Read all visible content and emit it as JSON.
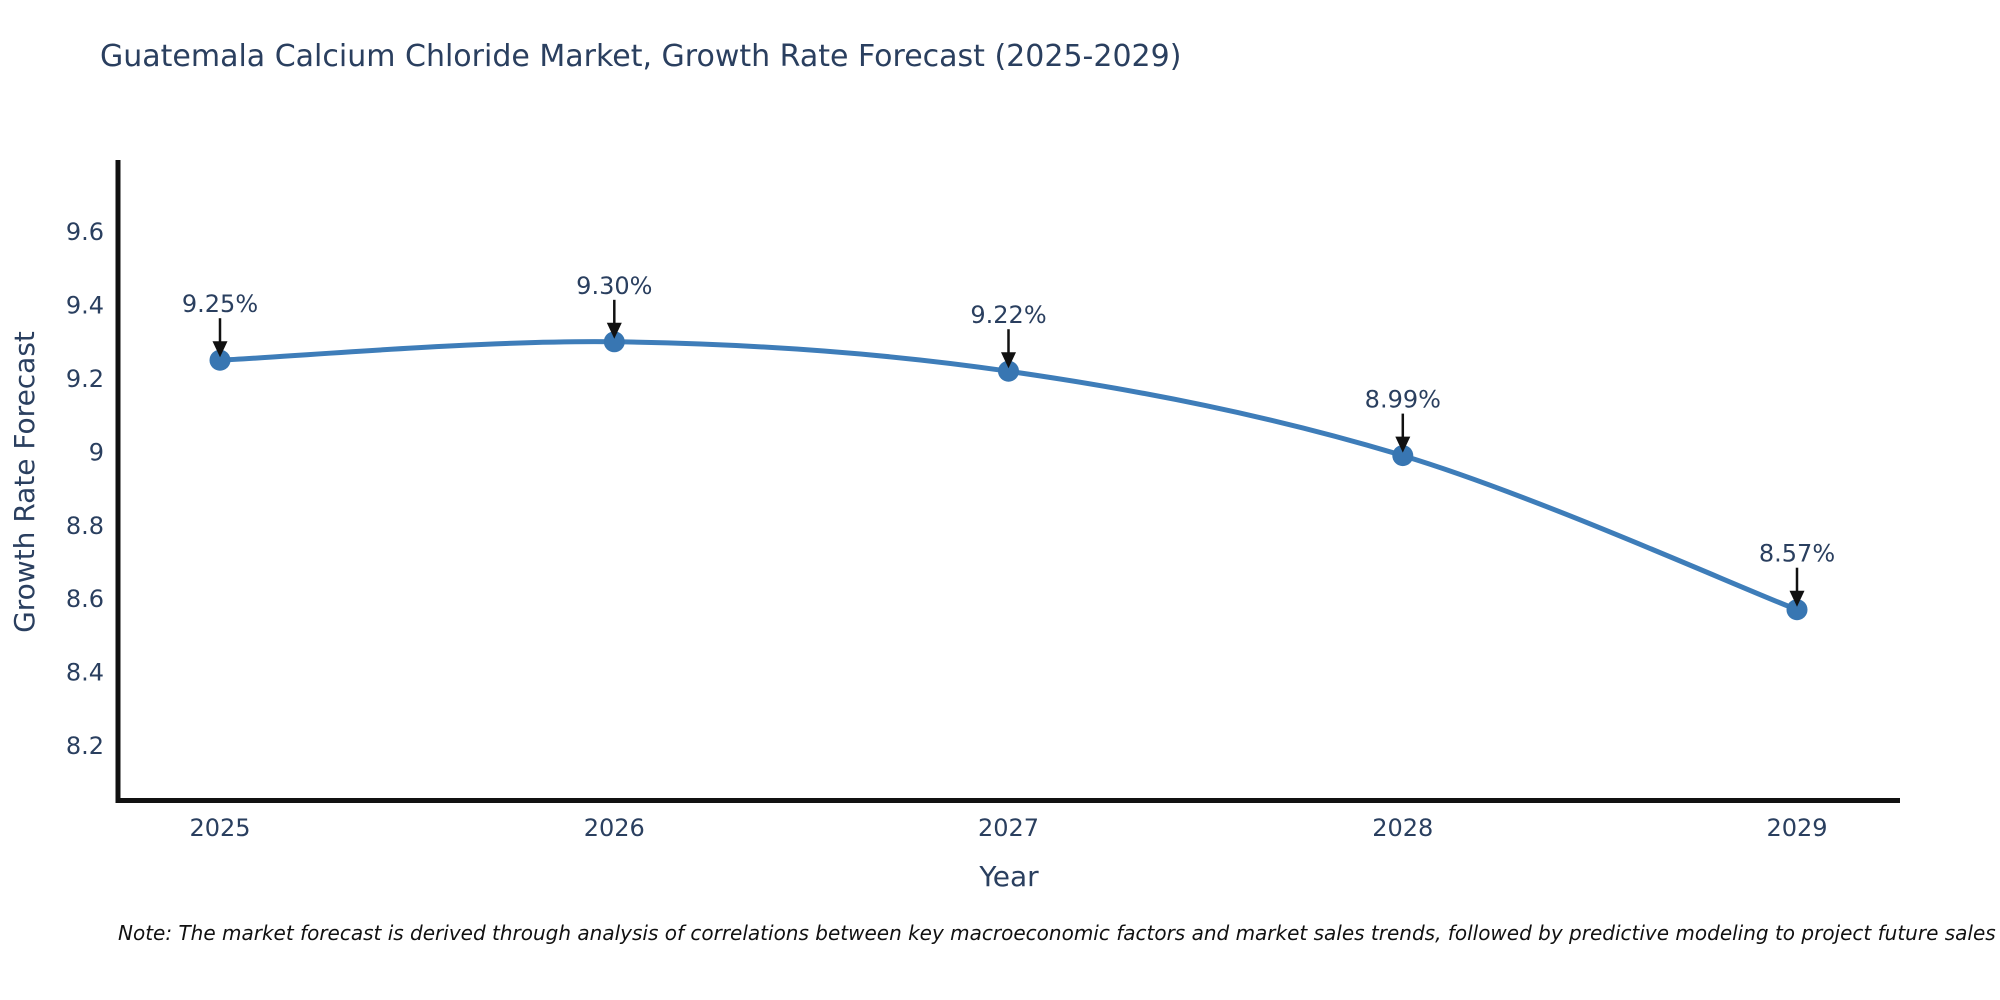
{
  "page": {
    "background": "#ffffff"
  },
  "chart_data": {
    "type": "line",
    "title": "Guatemala Calcium Chloride Market, Growth Rate Forecast (2025-2029)",
    "xlabel": "Year",
    "ylabel": "Growth Rate Forecast",
    "categories": [
      "2025",
      "2026",
      "2027",
      "2028",
      "2029"
    ],
    "series": [
      {
        "name": "Growth Rate Forecast",
        "values": [
          9.25,
          9.3,
          9.22,
          8.99,
          8.57
        ]
      }
    ],
    "point_labels": [
      "9.25%",
      "9.30%",
      "9.22%",
      "8.99%",
      "8.57%"
    ],
    "ytick_values": [
      9.6,
      9.4,
      9.2,
      9.0,
      8.8,
      8.6,
      8.4,
      8.2
    ],
    "ytick_labels": [
      "9.6",
      "9.4",
      "9.2",
      "9",
      "8.8",
      "8.6",
      "8.4",
      "8.2"
    ],
    "ylim": [
      8.05,
      9.79
    ],
    "grid": false,
    "legend": "none",
    "line_shape": "spline",
    "annotation_arrows": "black, pointing down at each data point",
    "colors": {
      "line": "#3e7db9",
      "marker": "#3876b2",
      "axis": "#111111",
      "text": "#2a3f5f",
      "arrow": "#111111",
      "note": "#111111",
      "background": "#ffffff"
    }
  },
  "note": {
    "text": "Note: The market forecast is derived through analysis of correlations between key macroeconomic factors and market sales trends, followed by predictive modeling to project future sales"
  }
}
